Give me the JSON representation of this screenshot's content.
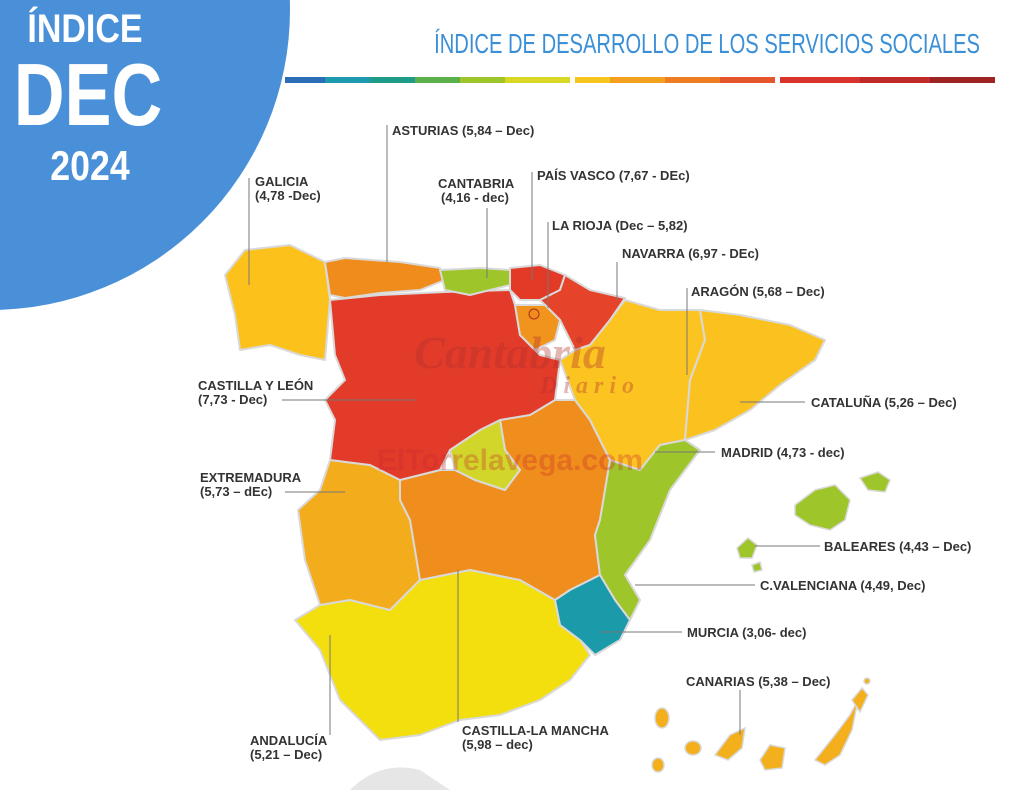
{
  "badge": {
    "line1": "ÍNDICE",
    "line2": "DEC",
    "line3": "2024"
  },
  "title": "ÍNDICE DE DESARROLLO DE LOS SERVICIOS SOCIALES",
  "watermark": [
    "Cantabria",
    "Diario",
    "ElTorrelavega.com"
  ],
  "regions": [
    {
      "lines": [
        "ASTURIAS (5,84 – Dec)"
      ]
    },
    {
      "lines": [
        "GALICIA",
        "(4,78 -Dec)"
      ]
    },
    {
      "lines": [
        "CANTABRIA",
        "(4,16 - dec)"
      ]
    },
    {
      "lines": [
        "PAÍS VASCO (7,67 - DEc)"
      ]
    },
    {
      "lines": [
        "LA RIOJA (Dec – 5,82)"
      ]
    },
    {
      "lines": [
        "NAVARRA (6,97 - DEc)"
      ]
    },
    {
      "lines": [
        "ARAGÓN (5,68 – Dec)"
      ]
    },
    {
      "lines": [
        "CASTILLA Y LEÓN",
        "(7,73 - Dec)"
      ]
    },
    {
      "lines": [
        "CATALUÑA (5,26 – Dec)"
      ]
    },
    {
      "lines": [
        "MADRID (4,73 - dec)"
      ]
    },
    {
      "lines": [
        "EXTREMADURA",
        "(5,73 – dEc)"
      ]
    },
    {
      "lines": [
        "BALEARES (4,43 – Dec)"
      ]
    },
    {
      "lines": [
        "C.VALENCIANA (4,49, Dec)"
      ]
    },
    {
      "lines": [
        "MURCIA (3,06- dec)"
      ]
    },
    {
      "lines": [
        "CANARIAS (5,38 – Dec)"
      ]
    },
    {
      "lines": [
        "ANDALUCÍA",
        "(5,21 – Dec)"
      ]
    },
    {
      "lines": [
        "CASTILLA-LA MANCHA",
        "(5,98 – dec)"
      ]
    }
  ]
}
